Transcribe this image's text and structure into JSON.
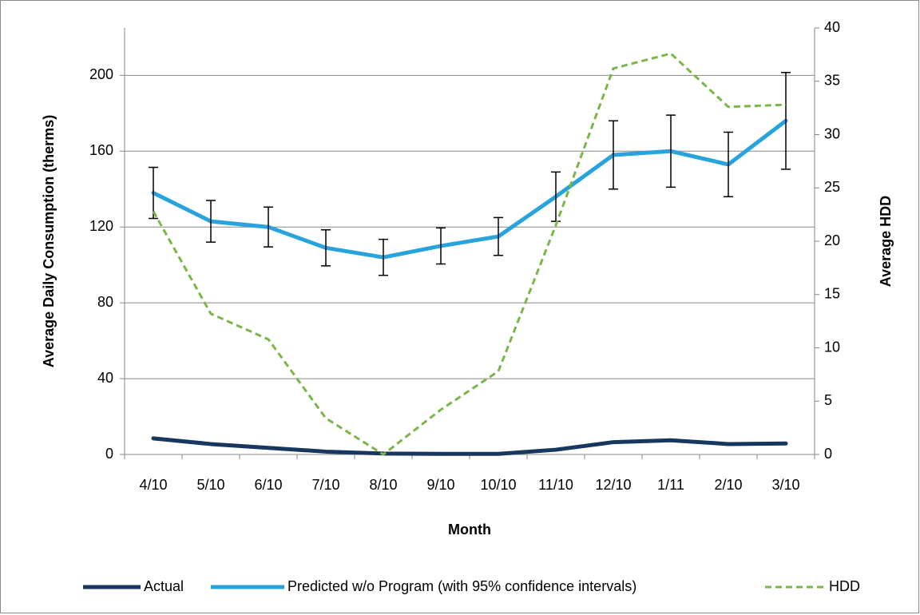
{
  "chart_data": {
    "type": "line",
    "categories": [
      "4/10",
      "5/10",
      "6/10",
      "7/10",
      "8/10",
      "9/10",
      "10/10",
      "11/10",
      "12/10",
      "1/11",
      "2/10",
      "3/10"
    ],
    "x_label": "Month",
    "y_label": "Average Daily Consumption (therms)",
    "y2_label": "Average HDD",
    "ylim": [
      0,
      225
    ],
    "yticks": [
      0,
      40,
      80,
      120,
      160,
      200
    ],
    "y2lim": [
      0,
      40
    ],
    "y2ticks": [
      0,
      5,
      10,
      15,
      20,
      25,
      30,
      35,
      40
    ],
    "grid": true,
    "legend": "bottom",
    "series": [
      {
        "name": "Actual",
        "color": "#17375e",
        "values": [
          8.5,
          5.5,
          3.5,
          1.5,
          0.5,
          0.3,
          0.3,
          2.5,
          6.5,
          7.5,
          5.5,
          5.8
        ]
      },
      {
        "name": "Predicted w/o Program (with 95% confidence intervals)",
        "color": "#29a3dc",
        "values": [
          138,
          123,
          120,
          109,
          104,
          110,
          115,
          136,
          158,
          160,
          153,
          176
        ],
        "errors": [
          13.5,
          11,
          10.5,
          9.5,
          9.5,
          9.5,
          10,
          13,
          18,
          19,
          17,
          25.5
        ]
      },
      {
        "name": "HDD",
        "color": "#7ab648",
        "axis": "y2",
        "dashed": true,
        "values": [
          22.8,
          13.2,
          10.8,
          3.4,
          0,
          4.2,
          7.8,
          21.5,
          36.2,
          37.6,
          32.6,
          32.8
        ]
      }
    ]
  }
}
